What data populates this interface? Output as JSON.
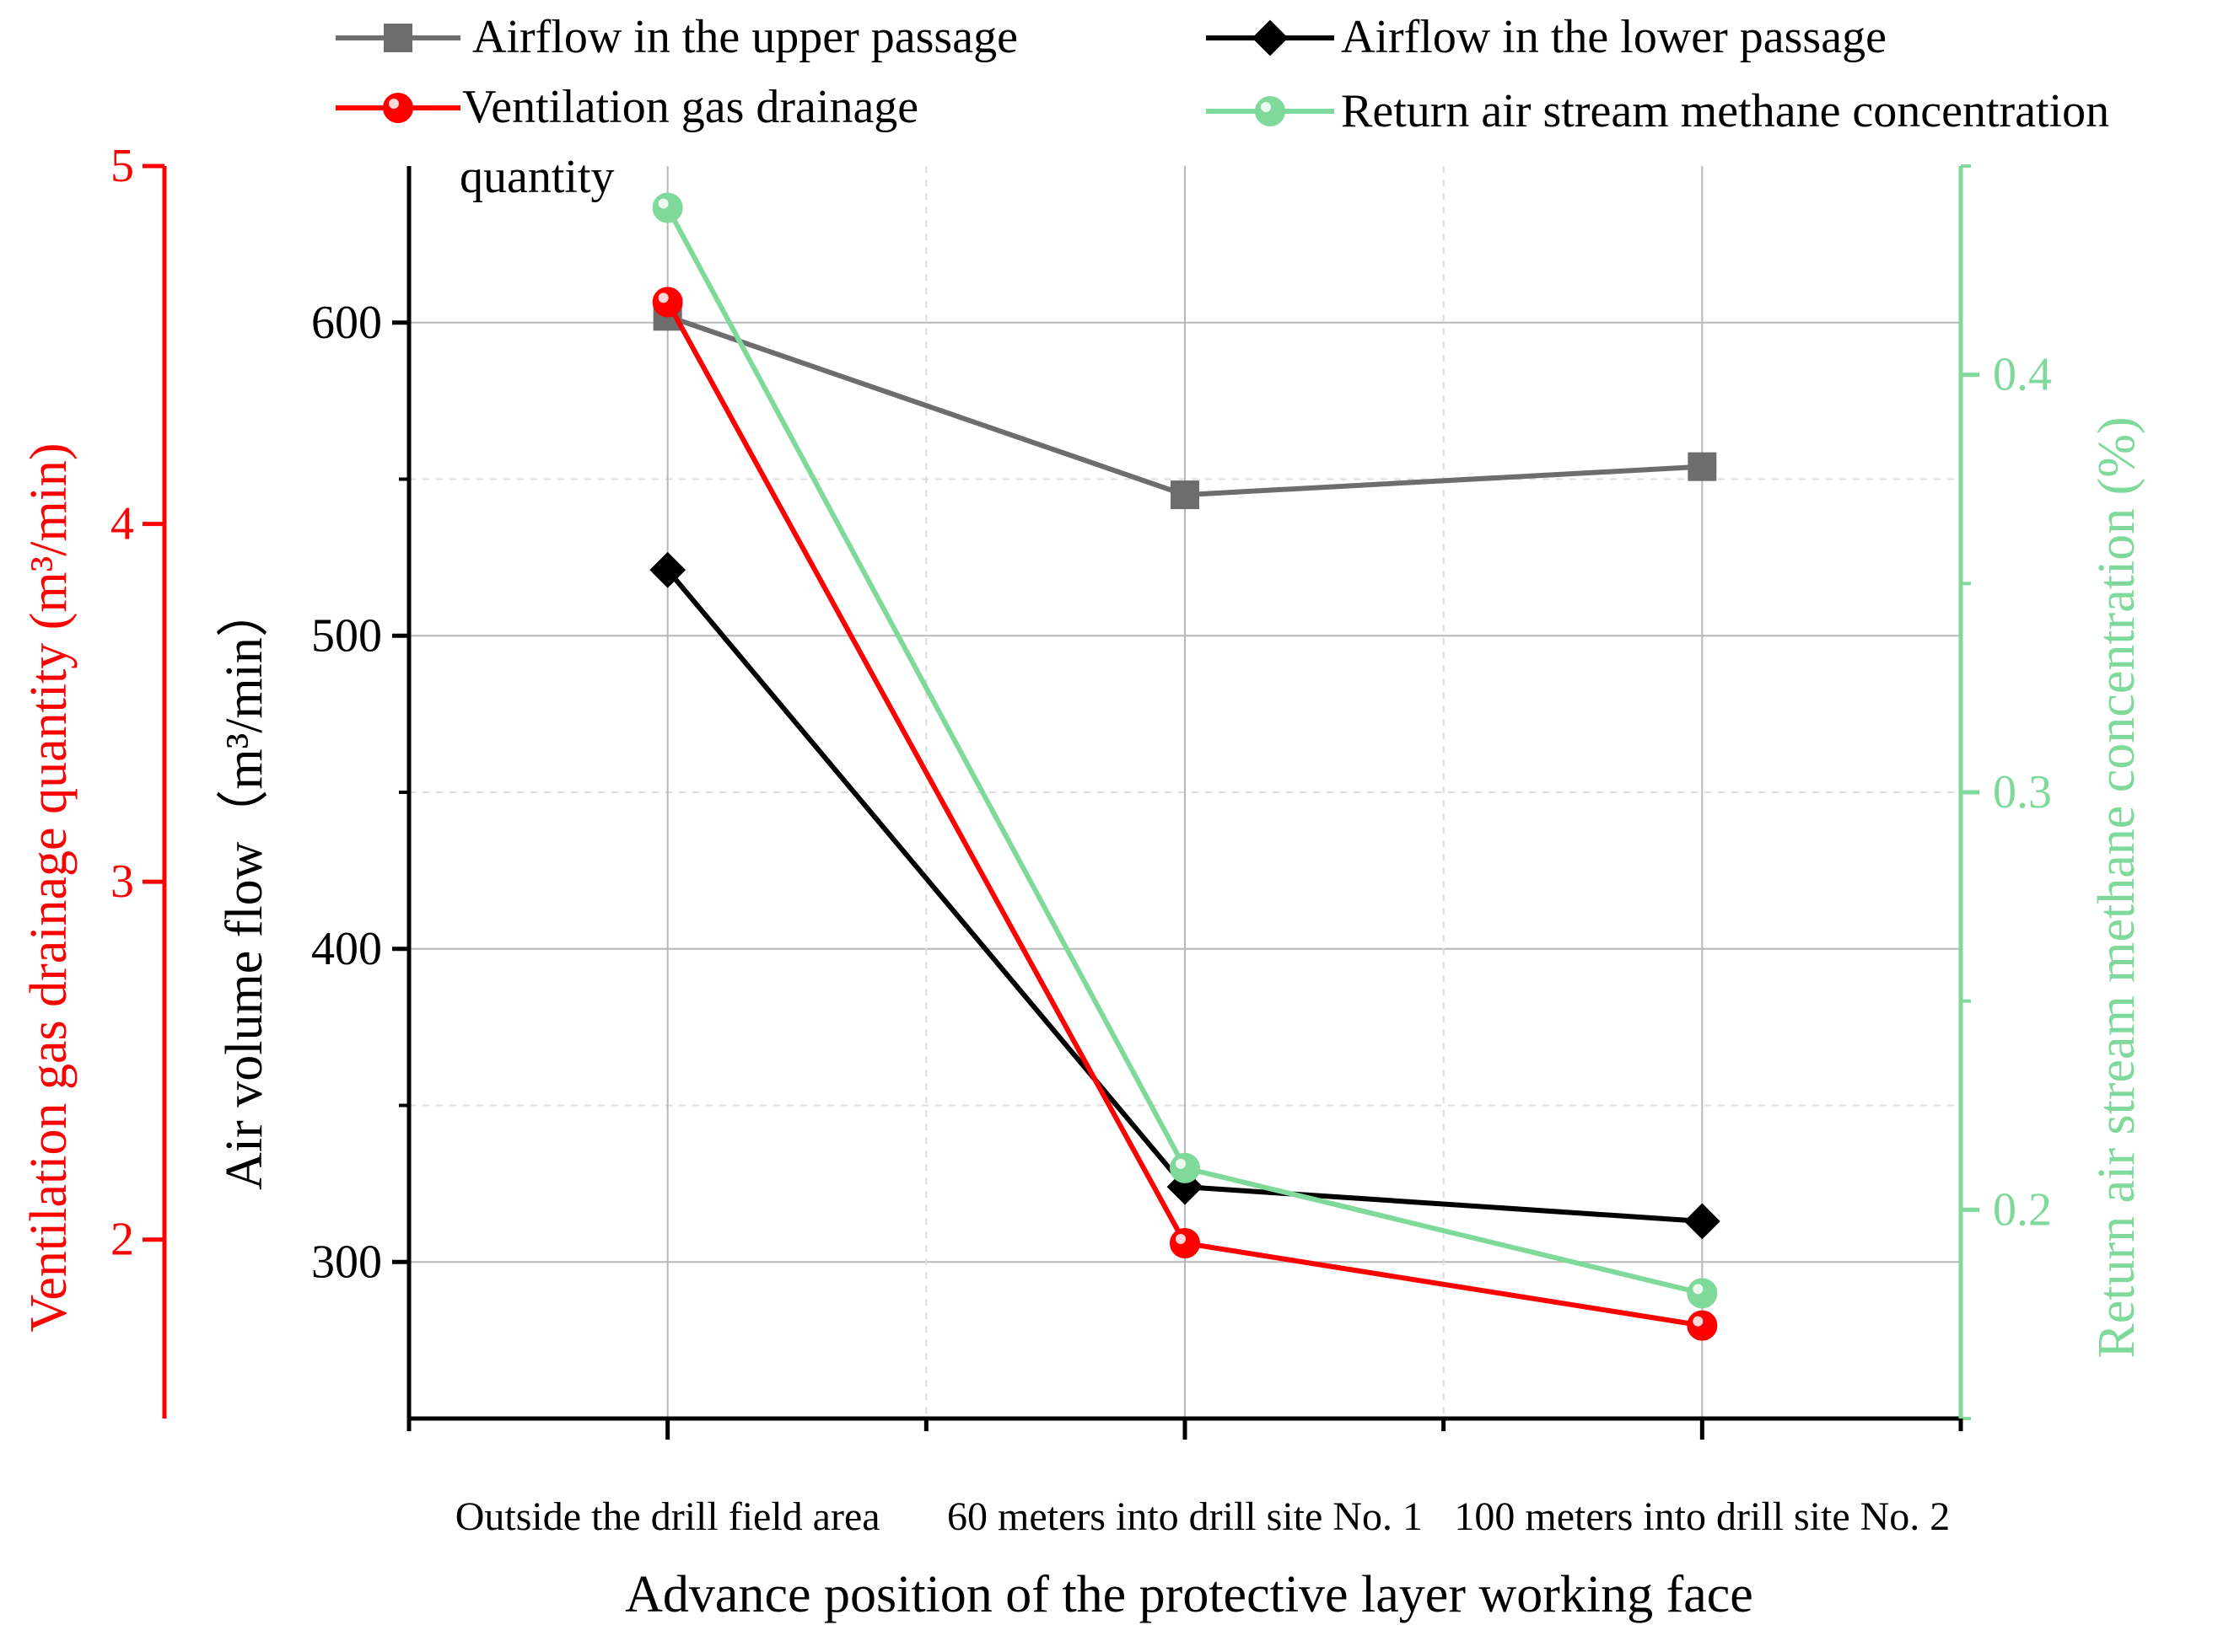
{
  "chart_data": {
    "type": "line",
    "xlabel": "Advance position of the protective layer working face",
    "categories": [
      "Outside the drill field area",
      "60 meters into drill site No. 1",
      "100 meters into drill site No. 2"
    ],
    "axes": {
      "left_primary": {
        "label": "Air volume flow（m³/min）",
        "range": [
          250,
          650
        ],
        "ticks": [
          300,
          400,
          500,
          600
        ],
        "color": "#000000"
      },
      "left_secondary": {
        "label": "Ventilation gas drainage quantity (m³/min)",
        "range": [
          1.5,
          5
        ],
        "ticks": [
          2,
          3,
          4,
          5
        ],
        "color": "#ff0000"
      },
      "right": {
        "label": "Return air stream methane concentration (%)",
        "range": [
          0.15,
          0.45
        ],
        "ticks": [
          0.2,
          0.3,
          0.4
        ],
        "color": "#7fd99a"
      }
    },
    "series": [
      {
        "name": "Airflow in the upper passage",
        "axis": "left_primary",
        "values": [
          602,
          545,
          554
        ],
        "color": "#6d6d6d",
        "marker": "square"
      },
      {
        "name": "Airflow in the lower passage",
        "axis": "left_primary",
        "values": [
          521,
          324,
          313
        ],
        "color": "#000000",
        "marker": "diamond"
      },
      {
        "name": "Ventilation gas drainage quantity",
        "axis": "left_secondary",
        "values": [
          4.62,
          1.99,
          1.76
        ],
        "color": "#ff0000",
        "marker": "circle"
      },
      {
        "name": "Return air stream methane concentration",
        "axis": "right",
        "values": [
          0.44,
          0.21,
          0.18
        ],
        "color": "#7fd99a",
        "marker": "circle"
      }
    ],
    "legend": {
      "position": "top",
      "items": [
        "Airflow in the upper passage",
        "Airflow in the lower passage",
        "Ventilation gas drainage quantity",
        "Return air stream methane concentration"
      ],
      "wrapped_label": [
        "Ventilation gas drainage",
        "quantity"
      ]
    },
    "grid": true
  }
}
